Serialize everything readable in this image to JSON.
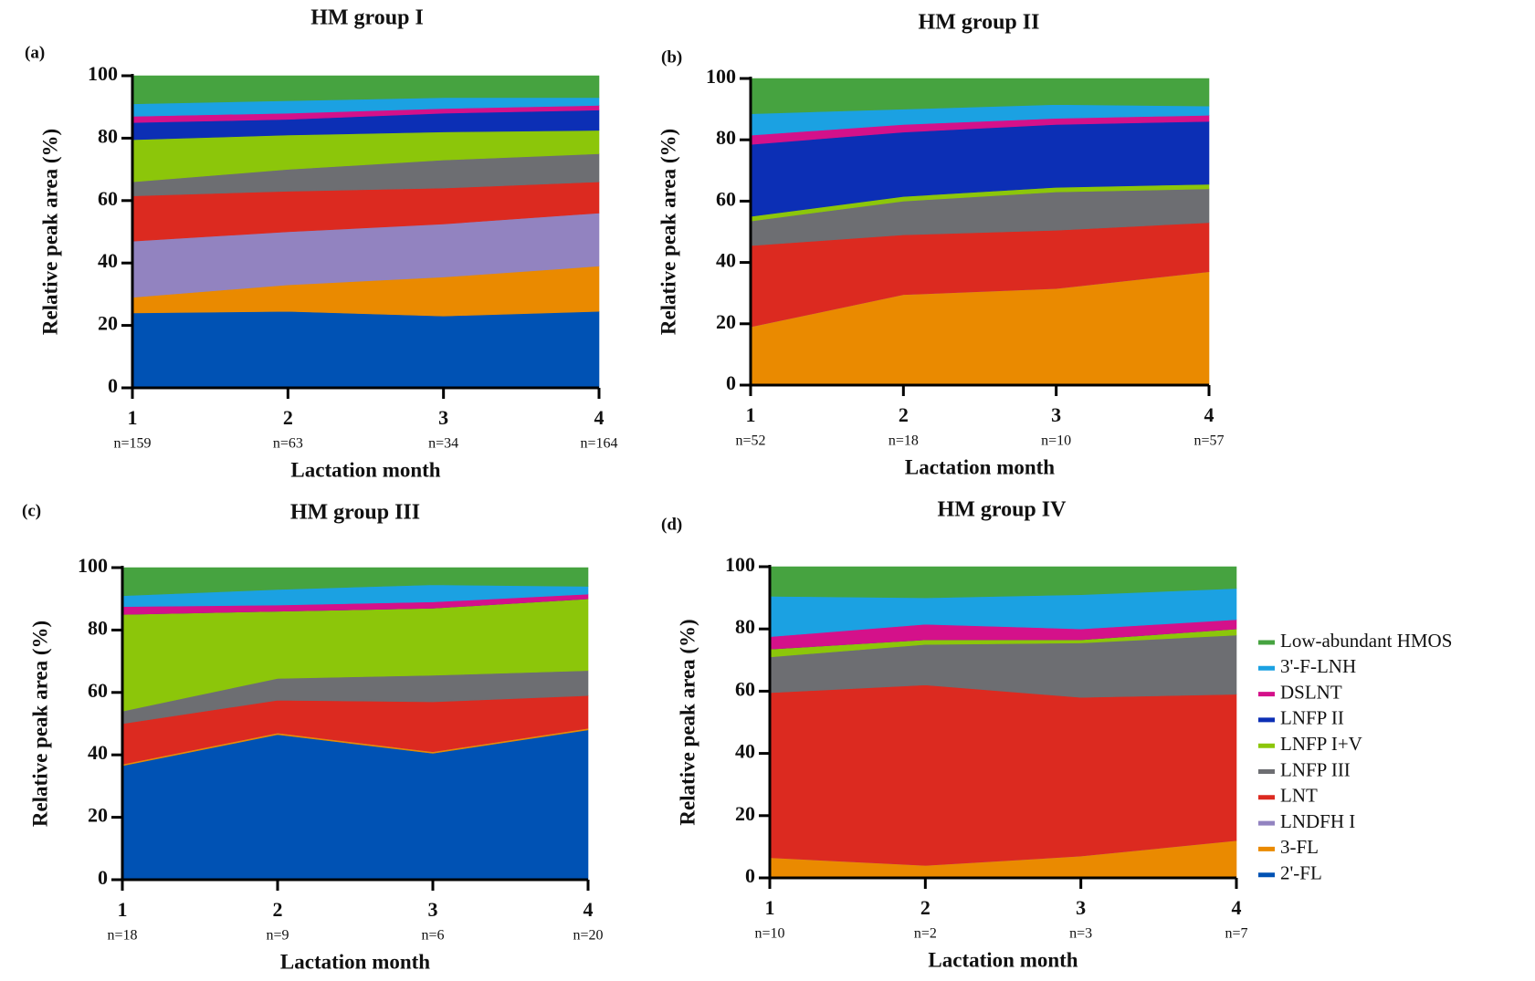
{
  "legend": [
    {
      "name": "Low-abundant HMOS",
      "color": "#46a340"
    },
    {
      "name": "3'-F-LNH",
      "color": "#1ba1e2"
    },
    {
      "name": "DSLNT",
      "color": "#d4118a"
    },
    {
      "name": "LNFP II",
      "color": "#0c2fb5"
    },
    {
      "name": "LNFP I+V",
      "color": "#8cc60a"
    },
    {
      "name": "LNFP III",
      "color": "#6d6e72"
    },
    {
      "name": "LNT",
      "color": "#dc2a20"
    },
    {
      "name": "LNDFH I",
      "color": "#9283c0"
    },
    {
      "name": "3-FL",
      "color": "#ea8a00"
    },
    {
      "name": "2'-FL",
      "color": "#0052b4"
    }
  ],
  "chart_data": [
    {
      "type": "stacked-area",
      "panel": "(a)",
      "title": "HM group I",
      "x_label": "Lactation month",
      "y_label": "Relative peak area (%)",
      "categories": [
        "1",
        "2",
        "3",
        "4"
      ],
      "sample_sizes": [
        "n=159",
        "n=63",
        "n=34",
        "n=164"
      ],
      "ylim": [
        0,
        100
      ],
      "yticks": [
        0,
        20,
        40,
        60,
        80,
        100
      ],
      "series": [
        {
          "values": [
            24,
            24.5,
            23,
            24.5
          ]
        },
        {
          "values": [
            5,
            8.5,
            12.5,
            14.5
          ]
        },
        {
          "values": [
            18,
            17,
            17,
            17
          ]
        },
        {
          "values": [
            14.5,
            13,
            11.5,
            10
          ]
        },
        {
          "values": [
            4.5,
            7,
            9,
            9
          ]
        },
        {
          "values": [
            13.5,
            11,
            9,
            7.5
          ]
        },
        {
          "values": [
            5.5,
            5,
            6,
            6.5
          ]
        },
        {
          "values": [
            2,
            2,
            1.5,
            1.5
          ]
        },
        {
          "values": [
            4,
            4,
            3.5,
            2.5
          ]
        },
        {
          "values": [
            9,
            8,
            7,
            7
          ]
        }
      ]
    },
    {
      "type": "stacked-area",
      "panel": "(b)",
      "title": "HM group II",
      "x_label": "Lactation month",
      "y_label": "Relative peak area (%)",
      "categories": [
        "1",
        "2",
        "3",
        "4"
      ],
      "sample_sizes": [
        "n=52",
        "n=18",
        "n=10",
        "n=57"
      ],
      "ylim": [
        0,
        100
      ],
      "yticks": [
        0,
        20,
        40,
        60,
        80,
        100
      ],
      "series": [
        {
          "values": [
            0,
            0,
            0,
            0
          ]
        },
        {
          "values": [
            19,
            29.5,
            31.5,
            37
          ]
        },
        {
          "values": [
            0,
            0,
            0,
            0
          ]
        },
        {
          "values": [
            26.5,
            19.5,
            19,
            16
          ]
        },
        {
          "values": [
            8,
            11,
            12.5,
            11
          ]
        },
        {
          "values": [
            1.5,
            1.5,
            1.5,
            1.5
          ]
        },
        {
          "values": [
            23.5,
            21,
            20.5,
            20.5
          ]
        },
        {
          "values": [
            3,
            2.5,
            2,
            2
          ]
        },
        {
          "values": [
            7,
            5,
            4.5,
            3
          ]
        },
        {
          "values": [
            11.5,
            10,
            8.5,
            9
          ]
        }
      ]
    },
    {
      "type": "stacked-area",
      "panel": "(c)",
      "title": "HM group  III",
      "x_label": "Lactation month",
      "y_label": "Relative peak area (%)",
      "categories": [
        "1",
        "2",
        "3",
        "4"
      ],
      "sample_sizes": [
        "n=18",
        "n=9",
        "n=6",
        "n=20"
      ],
      "ylim": [
        0,
        100
      ],
      "yticks": [
        0,
        20,
        40,
        60,
        80,
        100
      ],
      "series": [
        {
          "values": [
            36.5,
            46.5,
            40.5,
            48
          ]
        },
        {
          "values": [
            0.5,
            0.5,
            0.5,
            0.5
          ]
        },
        {
          "values": [
            0,
            0,
            0,
            0
          ]
        },
        {
          "values": [
            13,
            10.5,
            16,
            10.5
          ]
        },
        {
          "values": [
            4,
            7,
            8.5,
            8
          ]
        },
        {
          "values": [
            31,
            21.5,
            21.5,
            23
          ]
        },
        {
          "values": [
            0,
            0,
            0,
            0
          ]
        },
        {
          "values": [
            2.5,
            2,
            2,
            1.5
          ]
        },
        {
          "values": [
            3.5,
            5,
            5.5,
            2.5
          ]
        },
        {
          "values": [
            9,
            7,
            5.5,
            6
          ]
        }
      ]
    },
    {
      "type": "stacked-area",
      "panel": "(d)",
      "title": "HM group IV",
      "x_label": "Lactation month",
      "y_label": "Relative peak area (%)",
      "categories": [
        "1",
        "2",
        "3",
        "4"
      ],
      "sample_sizes": [
        "n=10",
        "n=2",
        "n=3",
        "n=7"
      ],
      "ylim": [
        0,
        100
      ],
      "yticks": [
        0,
        20,
        40,
        60,
        80,
        100
      ],
      "series": [
        {
          "values": [
            0,
            0,
            0,
            0
          ]
        },
        {
          "values": [
            6.5,
            4,
            7,
            12
          ]
        },
        {
          "values": [
            0,
            0,
            0,
            0
          ]
        },
        {
          "values": [
            53,
            58,
            51,
            47
          ]
        },
        {
          "values": [
            11.5,
            13,
            17.5,
            19
          ]
        },
        {
          "values": [
            2.5,
            1.5,
            1,
            2
          ]
        },
        {
          "values": [
            0,
            0,
            0,
            0
          ]
        },
        {
          "values": [
            4,
            5,
            3.5,
            3
          ]
        },
        {
          "values": [
            13,
            8.5,
            11,
            10
          ]
        },
        {
          "values": [
            9.5,
            10,
            9,
            7
          ]
        }
      ]
    }
  ]
}
